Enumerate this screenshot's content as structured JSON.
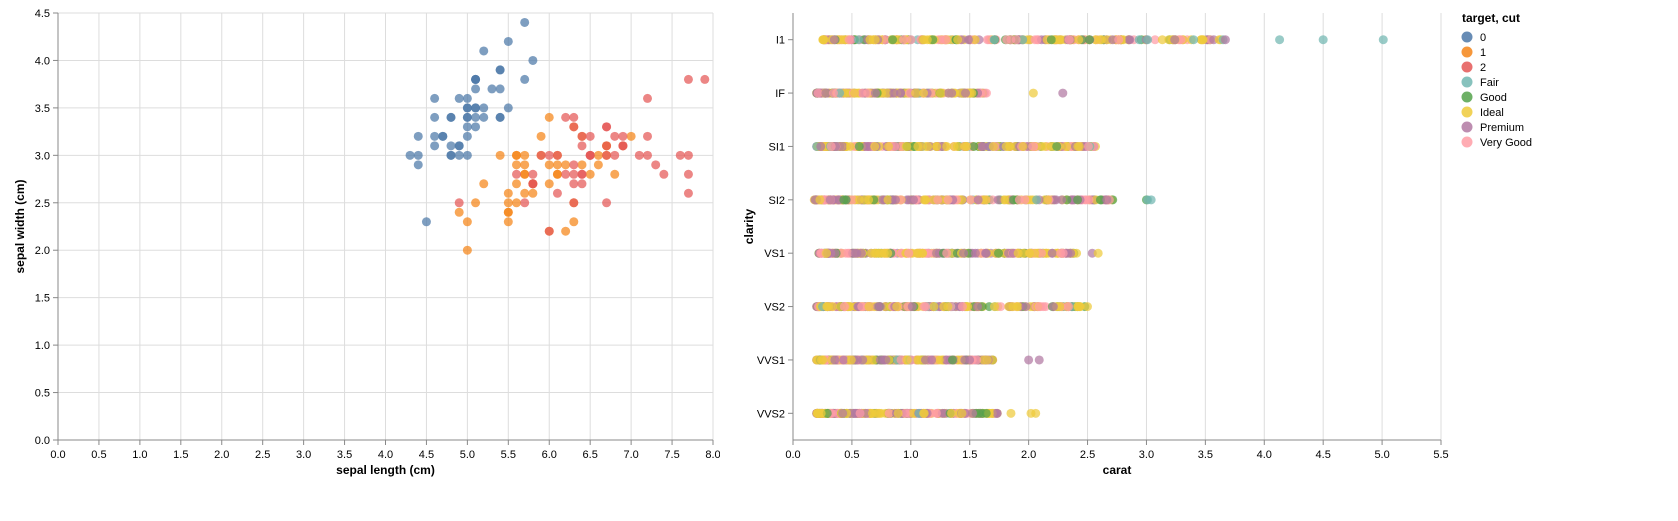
{
  "chart_data": [
    {
      "type": "scatter",
      "title": "",
      "xlabel": "sepal length (cm)",
      "ylabel": "sepal width (cm)",
      "xlim": [
        0,
        8
      ],
      "ylim": [
        0,
        4.5
      ],
      "x_ticks": [
        "0.0",
        "0.5",
        "1.0",
        "1.5",
        "2.0",
        "2.5",
        "3.0",
        "3.5",
        "4.0",
        "4.5",
        "5.0",
        "5.5",
        "6.0",
        "6.5",
        "7.0",
        "7.5",
        "8.0"
      ],
      "y_ticks": [
        "0.0",
        "0.5",
        "1.0",
        "1.5",
        "2.0",
        "2.5",
        "3.0",
        "3.5",
        "4.0",
        "4.5"
      ],
      "grid": true,
      "series": [
        {
          "name": "0",
          "color": "#4c78a8",
          "points": [
            [
              5.1,
              3.5
            ],
            [
              4.9,
              3.0
            ],
            [
              4.7,
              3.2
            ],
            [
              4.6,
              3.1
            ],
            [
              5.0,
              3.6
            ],
            [
              5.4,
              3.9
            ],
            [
              4.6,
              3.4
            ],
            [
              5.0,
              3.4
            ],
            [
              4.4,
              2.9
            ],
            [
              4.9,
              3.1
            ],
            [
              5.4,
              3.7
            ],
            [
              4.8,
              3.4
            ],
            [
              4.8,
              3.0
            ],
            [
              4.3,
              3.0
            ],
            [
              5.8,
              4.0
            ],
            [
              5.7,
              4.4
            ],
            [
              5.4,
              3.9
            ],
            [
              5.1,
              3.5
            ],
            [
              5.7,
              3.8
            ],
            [
              5.1,
              3.8
            ],
            [
              5.4,
              3.4
            ],
            [
              5.1,
              3.7
            ],
            [
              4.6,
              3.6
            ],
            [
              5.1,
              3.3
            ],
            [
              4.8,
              3.4
            ],
            [
              5.0,
              3.0
            ],
            [
              5.0,
              3.4
            ],
            [
              5.2,
              3.5
            ],
            [
              5.2,
              3.4
            ],
            [
              4.7,
              3.2
            ],
            [
              4.8,
              3.1
            ],
            [
              5.4,
              3.4
            ],
            [
              5.2,
              4.1
            ],
            [
              5.5,
              4.2
            ],
            [
              4.9,
              3.1
            ],
            [
              5.0,
              3.2
            ],
            [
              5.5,
              3.5
            ],
            [
              4.9,
              3.6
            ],
            [
              4.4,
              3.0
            ],
            [
              5.1,
              3.4
            ],
            [
              5.0,
              3.5
            ],
            [
              4.5,
              2.3
            ],
            [
              4.4,
              3.2
            ],
            [
              5.0,
              3.5
            ],
            [
              5.1,
              3.8
            ],
            [
              4.8,
              3.0
            ],
            [
              5.1,
              3.8
            ],
            [
              4.6,
              3.2
            ],
            [
              5.3,
              3.7
            ],
            [
              5.0,
              3.3
            ]
          ]
        },
        {
          "name": "1",
          "color": "#f58518",
          "points": [
            [
              7.0,
              3.2
            ],
            [
              6.4,
              3.2
            ],
            [
              6.9,
              3.1
            ],
            [
              5.5,
              2.3
            ],
            [
              6.5,
              2.8
            ],
            [
              5.7,
              2.8
            ],
            [
              6.3,
              3.3
            ],
            [
              4.9,
              2.4
            ],
            [
              6.6,
              2.9
            ],
            [
              5.2,
              2.7
            ],
            [
              5.0,
              2.0
            ],
            [
              5.9,
              3.0
            ],
            [
              6.0,
              2.2
            ],
            [
              6.1,
              2.9
            ],
            [
              5.6,
              2.9
            ],
            [
              6.7,
              3.1
            ],
            [
              5.6,
              3.0
            ],
            [
              5.8,
              2.7
            ],
            [
              6.2,
              2.2
            ],
            [
              5.6,
              2.5
            ],
            [
              5.9,
              3.2
            ],
            [
              6.1,
              2.8
            ],
            [
              6.3,
              2.5
            ],
            [
              6.1,
              2.8
            ],
            [
              6.4,
              2.9
            ],
            [
              6.6,
              3.0
            ],
            [
              6.8,
              2.8
            ],
            [
              6.7,
              3.0
            ],
            [
              6.0,
              2.9
            ],
            [
              5.7,
              2.6
            ],
            [
              5.5,
              2.4
            ],
            [
              5.5,
              2.4
            ],
            [
              5.8,
              2.7
            ],
            [
              6.0,
              2.7
            ],
            [
              5.4,
              3.0
            ],
            [
              6.0,
              3.4
            ],
            [
              6.7,
              3.1
            ],
            [
              6.3,
              2.3
            ],
            [
              5.6,
              3.0
            ],
            [
              5.5,
              2.5
            ],
            [
              5.5,
              2.6
            ],
            [
              6.1,
              3.0
            ],
            [
              5.8,
              2.6
            ],
            [
              5.0,
              2.3
            ],
            [
              5.6,
              2.7
            ],
            [
              5.7,
              3.0
            ],
            [
              5.7,
              2.9
            ],
            [
              6.2,
              2.9
            ],
            [
              5.1,
              2.5
            ],
            [
              5.7,
              2.8
            ]
          ]
        },
        {
          "name": "2",
          "color": "#e45756",
          "points": [
            [
              6.3,
              3.3
            ],
            [
              5.8,
              2.7
            ],
            [
              7.1,
              3.0
            ],
            [
              6.3,
              2.9
            ],
            [
              6.5,
              3.0
            ],
            [
              7.6,
              3.0
            ],
            [
              4.9,
              2.5
            ],
            [
              7.3,
              2.9
            ],
            [
              6.7,
              2.5
            ],
            [
              7.2,
              3.6
            ],
            [
              6.5,
              3.2
            ],
            [
              6.4,
              2.7
            ],
            [
              6.8,
              3.0
            ],
            [
              5.7,
              2.5
            ],
            [
              5.8,
              2.8
            ],
            [
              6.4,
              3.2
            ],
            [
              6.5,
              3.0
            ],
            [
              7.7,
              3.8
            ],
            [
              7.7,
              2.6
            ],
            [
              6.0,
              2.2
            ],
            [
              6.9,
              3.2
            ],
            [
              5.6,
              2.8
            ],
            [
              7.7,
              2.8
            ],
            [
              6.3,
              2.7
            ],
            [
              6.7,
              3.3
            ],
            [
              7.2,
              3.2
            ],
            [
              6.2,
              2.8
            ],
            [
              6.1,
              3.0
            ],
            [
              6.4,
              2.8
            ],
            [
              7.2,
              3.0
            ],
            [
              7.4,
              2.8
            ],
            [
              7.9,
              3.8
            ],
            [
              6.4,
              2.8
            ],
            [
              6.3,
              2.8
            ],
            [
              6.1,
              2.6
            ],
            [
              7.7,
              3.0
            ],
            [
              6.3,
              3.4
            ],
            [
              6.4,
              3.1
            ],
            [
              6.0,
              3.0
            ],
            [
              6.9,
              3.1
            ],
            [
              6.7,
              3.1
            ],
            [
              6.9,
              3.1
            ],
            [
              5.8,
              2.7
            ],
            [
              6.8,
              3.2
            ],
            [
              6.7,
              3.3
            ],
            [
              6.7,
              3.0
            ],
            [
              6.3,
              2.5
            ],
            [
              6.5,
              3.0
            ],
            [
              6.2,
              3.4
            ],
            [
              5.9,
              3.0
            ]
          ]
        }
      ]
    },
    {
      "type": "scatter",
      "title": "",
      "xlabel": "carat",
      "ylabel": "clarity",
      "xlim": [
        0,
        5.5
      ],
      "x_ticks": [
        "0.0",
        "0.5",
        "1.0",
        "1.5",
        "2.0",
        "2.5",
        "3.0",
        "3.5",
        "4.0",
        "4.5",
        "5.0",
        "5.5"
      ],
      "categories": [
        "I1",
        "IF",
        "SI1",
        "SI2",
        "VS1",
        "VS2",
        "VVS1",
        "VVS2"
      ],
      "grid": true,
      "series_names": [
        "Fair",
        "Good",
        "Ideal",
        "Premium",
        "Very Good"
      ],
      "series_colors": {
        "Fair": "#72b7b2",
        "Good": "#54a24b",
        "Ideal": "#eeca3b",
        "Premium": "#b279a2",
        "Very Good": "#ff9da6"
      },
      "strips": {
        "I1": [
          0.25,
          3.65
        ],
        "IF": [
          0.2,
          1.65
        ],
        "SI1": [
          0.2,
          2.57
        ],
        "SI2": [
          0.18,
          2.75
        ],
        "VS1": [
          0.22,
          2.42
        ],
        "VS2": [
          0.2,
          2.5
        ],
        "VVS1": [
          0.2,
          1.7
        ],
        "VVS2": [
          0.2,
          1.75
        ]
      },
      "outliers": [
        {
          "clarity": "I1",
          "carat": 3.0,
          "cut": "Premium"
        },
        {
          "clarity": "I1",
          "carat": 3.01,
          "cut": "Fair"
        },
        {
          "clarity": "I1",
          "carat": 3.22,
          "cut": "Ideal"
        },
        {
          "clarity": "I1",
          "carat": 3.24,
          "cut": "Premium"
        },
        {
          "clarity": "I1",
          "carat": 3.4,
          "cut": "Fair"
        },
        {
          "clarity": "I1",
          "carat": 3.65,
          "cut": "Fair"
        },
        {
          "clarity": "I1",
          "carat": 3.67,
          "cut": "Premium"
        },
        {
          "clarity": "I1",
          "carat": 4.13,
          "cut": "Fair"
        },
        {
          "clarity": "I1",
          "carat": 4.5,
          "cut": "Fair"
        },
        {
          "clarity": "I1",
          "carat": 5.01,
          "cut": "Fair"
        },
        {
          "clarity": "IF",
          "carat": 2.04,
          "cut": "Ideal"
        },
        {
          "clarity": "IF",
          "carat": 2.29,
          "cut": "Premium"
        },
        {
          "clarity": "SI2",
          "carat": 3.0,
          "cut": "Good"
        },
        {
          "clarity": "SI2",
          "carat": 3.01,
          "cut": "Fair"
        },
        {
          "clarity": "SI2",
          "carat": 3.04,
          "cut": "Fair"
        },
        {
          "clarity": "VS1",
          "carat": 2.54,
          "cut": "Premium"
        },
        {
          "clarity": "VS1",
          "carat": 2.59,
          "cut": "Ideal"
        },
        {
          "clarity": "VVS1",
          "carat": 2.0,
          "cut": "Premium"
        },
        {
          "clarity": "VVS1",
          "carat": 2.09,
          "cut": "Premium"
        },
        {
          "clarity": "VVS2",
          "carat": 1.85,
          "cut": "Ideal"
        },
        {
          "clarity": "VVS2",
          "carat": 2.02,
          "cut": "Ideal"
        },
        {
          "clarity": "VVS2",
          "carat": 2.06,
          "cut": "Ideal"
        }
      ]
    }
  ],
  "legend": {
    "title": "target, cut",
    "position": "right",
    "entries": [
      {
        "label": "0",
        "color": "#4c78a8"
      },
      {
        "label": "1",
        "color": "#f58518"
      },
      {
        "label": "2",
        "color": "#e45756"
      },
      {
        "label": "Fair",
        "color": "#72b7b2"
      },
      {
        "label": "Good",
        "color": "#54a24b"
      },
      {
        "label": "Ideal",
        "color": "#eeca3b"
      },
      {
        "label": "Premium",
        "color": "#b279a2"
      },
      {
        "label": "Very Good",
        "color": "#ff9da6"
      }
    ]
  }
}
